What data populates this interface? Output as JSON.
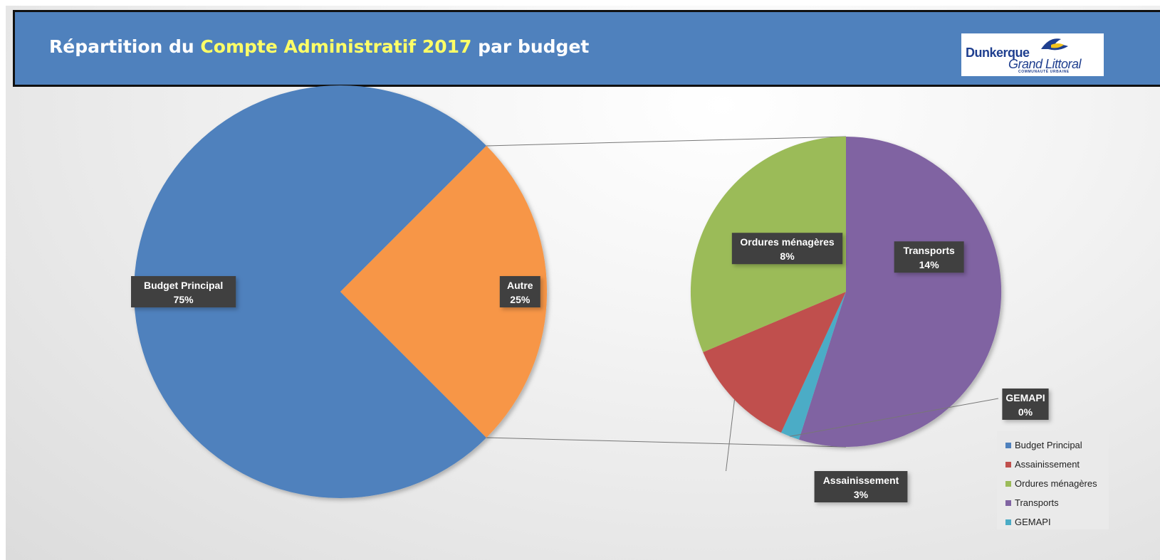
{
  "title": {
    "part1": "Répartition du ",
    "highlight": "Compte Administratif 2017",
    "part2": " par budget"
  },
  "logo": {
    "line1": "Dunkerque",
    "line2": "Grand Littoral",
    "line3": "COMMUNAUTÉ URBAINE"
  },
  "colors": {
    "budget_principal": "#4f81bd",
    "autre": "#f79646",
    "assainissement": "#c0504d",
    "ordures": "#9bbb59",
    "transports": "#8064a2",
    "gemapi": "#4bacc6",
    "banner": "#4f81bd"
  },
  "chart_data": {
    "type": "pie",
    "subtype": "pie-of-pie",
    "primary": {
      "slices": [
        {
          "label": "Budget Principal",
          "value": 75,
          "pct_label": "75%"
        },
        {
          "label": "Autre",
          "value": 25,
          "pct_label": "25%"
        }
      ]
    },
    "secondary": {
      "slices": [
        {
          "label": "Transports",
          "value": 14,
          "pct_label": "14%"
        },
        {
          "label": "GEMAPI",
          "value": 0.5,
          "pct_label": "0%"
        },
        {
          "label": "Assainissement",
          "value": 3,
          "pct_label": "3%"
        },
        {
          "label": "Ordures ménagères",
          "value": 8,
          "pct_label": "8%"
        }
      ]
    },
    "legend": {
      "position": "bottom-right",
      "entries": [
        "Budget Principal",
        "Assainissement",
        "Ordures ménagères",
        "Transports",
        "GEMAPI"
      ]
    }
  }
}
